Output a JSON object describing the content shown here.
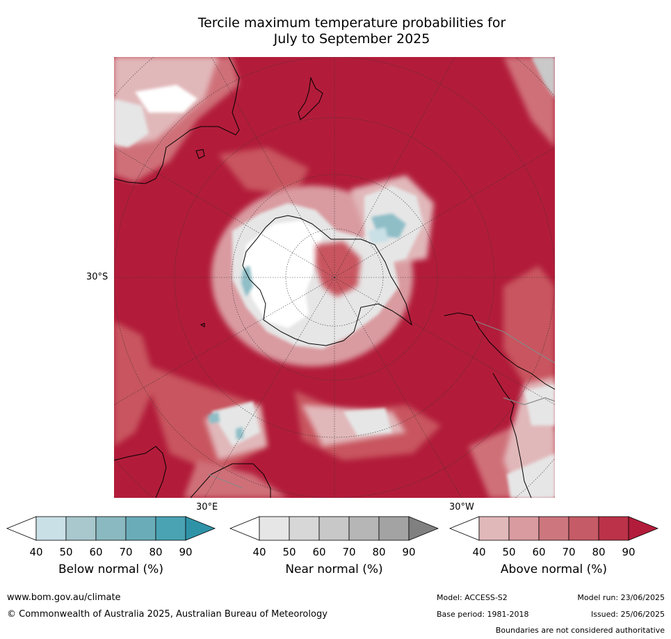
{
  "title_line1": "Tercile maximum temperature probabilities for",
  "title_line2": "July to September 2025",
  "map": {
    "projection": "south-polar-stereographic",
    "labels": {
      "lat": "30°S",
      "lon_east": "30°E",
      "lon_west": "30°W"
    },
    "colors": {
      "above_90": "#b21c3a",
      "above_80": "#bd3249",
      "above_70": "#c8555f",
      "above_60": "#cf7078",
      "above_50": "#d99ba0",
      "above_40": "#e1b8ba",
      "normal_low": "#e6e6e6",
      "normal_mid": "#c9c9c9",
      "below_low": "#c9e0e6",
      "below_mid": "#8fbec7",
      "land_line": "#000000"
    }
  },
  "colorbars": [
    {
      "title": "Below normal (%)",
      "ticks": [
        "40",
        "50",
        "60",
        "70",
        "80",
        "90"
      ],
      "colors": [
        "#ffffff",
        "#c9e0e6",
        "#a8c8ce",
        "#8ab9c1",
        "#6aadb9",
        "#4aa3b3",
        "#2f93a7"
      ]
    },
    {
      "title": "Near normal (%)",
      "ticks": [
        "40",
        "50",
        "60",
        "70",
        "80",
        "90"
      ],
      "colors": [
        "#ffffff",
        "#e6e6e6",
        "#d7d7d7",
        "#c8c8c8",
        "#b6b6b6",
        "#a3a3a3",
        "#808080"
      ]
    },
    {
      "title": "Above normal (%)",
      "ticks": [
        "40",
        "50",
        "60",
        "70",
        "80",
        "90"
      ],
      "colors": [
        "#ffffff",
        "#e1b8ba",
        "#d99ba0",
        "#cd767e",
        "#c55b66",
        "#bb3249",
        "#b21c3a"
      ]
    }
  ],
  "footer": {
    "website": "www.bom.gov.au/climate",
    "copyright": "© Commonwealth of Australia 2025, Australian Bureau of Meteorology",
    "model": "Model: ACCESS-S2",
    "model_run": "Model run: 23/06/2025",
    "base_period": "Base period: 1981-2018",
    "issued": "Issued: 25/06/2025",
    "disclaimer": "Boundaries are not considered authoritative"
  }
}
